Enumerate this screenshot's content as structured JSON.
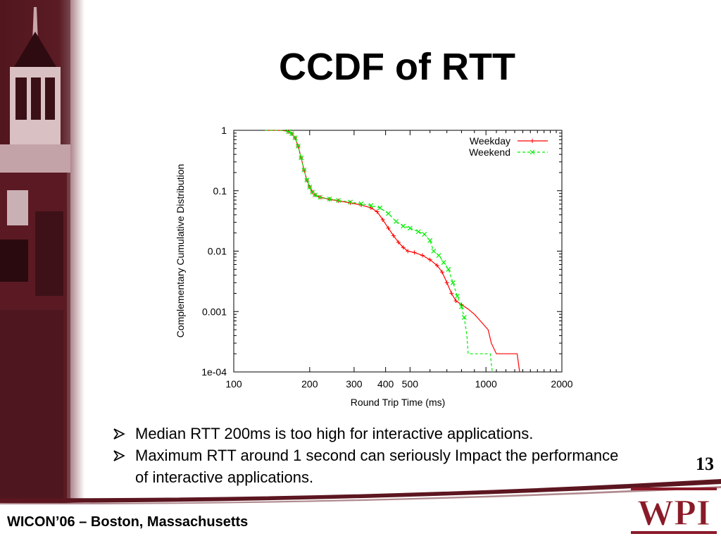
{
  "slide": {
    "title": "CCDF of RTT",
    "page_number": "13",
    "footer": "WICON’06 – Boston, Massachusetts",
    "logo_text": "WPI",
    "bullets": [
      "Median RTT 200ms is too high for interactive applications.",
      "Maximum RTT around 1 second can seriously Impact the performance of interactive applications."
    ]
  },
  "colors": {
    "weekday": "#ff0000",
    "weekend": "#00ee00",
    "brand_maroon": "#8a1a28"
  },
  "chart_data": {
    "type": "line",
    "xlabel": "Round Trip Time (ms)",
    "ylabel": "Complementary Cumulative Distribution",
    "x_scale": "log",
    "y_scale": "log",
    "xlim": [
      100,
      2000
    ],
    "ylim": [
      0.0001,
      1
    ],
    "x_ticks": [
      {
        "value": 100,
        "label": "100"
      },
      {
        "value": 200,
        "label": "200"
      },
      {
        "value": 300,
        "label": "300"
      },
      {
        "value": 400,
        "label": "400"
      },
      {
        "value": 500,
        "label": "500"
      },
      {
        "value": 1000,
        "label": "1000"
      },
      {
        "value": 2000,
        "label": "2000"
      }
    ],
    "y_ticks": [
      {
        "value": 1,
        "label": "1"
      },
      {
        "value": 0.1,
        "label": "0.1"
      },
      {
        "value": 0.01,
        "label": "0.01"
      },
      {
        "value": 0.001,
        "label": "0.001"
      },
      {
        "value": 0.0001,
        "label": "1e-04"
      }
    ],
    "legend_position": "top-right",
    "grid": false,
    "series": [
      {
        "name": "Weekday",
        "color": "#ff0000",
        "line_style": "solid",
        "marker": "plus",
        "points": [
          [
            133,
            1
          ],
          [
            148,
            1
          ],
          [
            158,
            0.99
          ],
          [
            165,
            0.95
          ],
          [
            170,
            0.88
          ],
          [
            175,
            0.75
          ],
          [
            180,
            0.55
          ],
          [
            185,
            0.35
          ],
          [
            190,
            0.22
          ],
          [
            195,
            0.15
          ],
          [
            200,
            0.115
          ],
          [
            205,
            0.095
          ],
          [
            210,
            0.085
          ],
          [
            220,
            0.078
          ],
          [
            240,
            0.072
          ],
          [
            260,
            0.068
          ],
          [
            290,
            0.063
          ],
          [
            320,
            0.058
          ],
          [
            350,
            0.052
          ],
          [
            370,
            0.045
          ],
          [
            390,
            0.033
          ],
          [
            410,
            0.024
          ],
          [
            430,
            0.018
          ],
          [
            450,
            0.014
          ],
          [
            470,
            0.0115
          ],
          [
            490,
            0.01
          ],
          [
            520,
            0.0095
          ],
          [
            560,
            0.0085
          ],
          [
            600,
            0.0072
          ],
          [
            640,
            0.0058
          ],
          [
            670,
            0.0045
          ],
          [
            700,
            0.003
          ],
          [
            730,
            0.002
          ],
          [
            760,
            0.0015
          ],
          [
            800,
            0.0013
          ],
          [
            850,
            0.0011
          ],
          [
            900,
            0.0009
          ],
          [
            950,
            0.0007
          ],
          [
            1020,
            0.0005
          ],
          [
            1050,
            0.0003
          ],
          [
            1100,
            0.0002
          ],
          [
            1330,
            0.0002
          ],
          [
            1360,
            0.0001
          ]
        ]
      },
      {
        "name": "Weekend",
        "color": "#00ee00",
        "line_style": "dashed",
        "marker": "x",
        "points": [
          [
            133,
            1
          ],
          [
            148,
            1
          ],
          [
            158,
            0.99
          ],
          [
            165,
            0.95
          ],
          [
            170,
            0.88
          ],
          [
            175,
            0.75
          ],
          [
            180,
            0.55
          ],
          [
            185,
            0.35
          ],
          [
            190,
            0.22
          ],
          [
            195,
            0.15
          ],
          [
            200,
            0.115
          ],
          [
            205,
            0.095
          ],
          [
            210,
            0.085
          ],
          [
            220,
            0.078
          ],
          [
            240,
            0.073
          ],
          [
            260,
            0.069
          ],
          [
            290,
            0.065
          ],
          [
            320,
            0.061
          ],
          [
            350,
            0.057
          ],
          [
            380,
            0.052
          ],
          [
            410,
            0.042
          ],
          [
            440,
            0.031
          ],
          [
            470,
            0.026
          ],
          [
            500,
            0.024
          ],
          [
            540,
            0.021
          ],
          [
            570,
            0.019
          ],
          [
            600,
            0.015
          ],
          [
            620,
            0.01
          ],
          [
            650,
            0.0085
          ],
          [
            680,
            0.0065
          ],
          [
            710,
            0.005
          ],
          [
            740,
            0.003
          ],
          [
            770,
            0.0018
          ],
          [
            800,
            0.0012
          ],
          [
            820,
            0.0008
          ],
          [
            840,
            0.0004
          ],
          [
            850,
            0.0002
          ],
          [
            1040,
            0.0002
          ],
          [
            1060,
            0.0001
          ]
        ]
      }
    ]
  }
}
